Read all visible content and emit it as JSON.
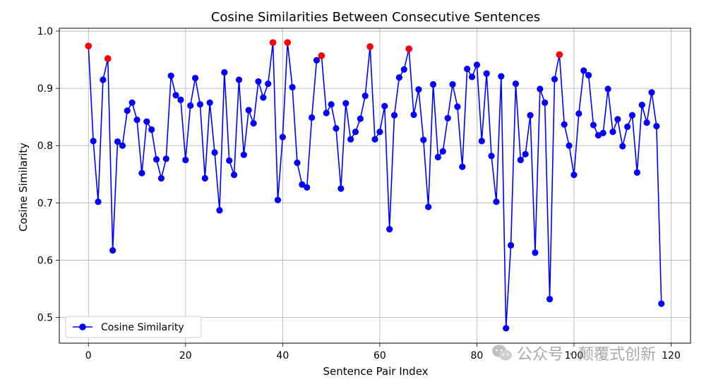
{
  "chart_data": {
    "type": "line",
    "title": "Cosine Similarities Between Consecutive Sentences",
    "xlabel": "Sentence Pair Index",
    "ylabel": "Cosine Similarity",
    "xlim": [
      -6,
      124
    ],
    "ylim": [
      0.455,
      1.005
    ],
    "xticks": [
      0,
      20,
      40,
      60,
      80,
      100,
      120
    ],
    "yticks": [
      0.5,
      0.6,
      0.7,
      0.8,
      0.9,
      1.0
    ],
    "grid": true,
    "legend_position": "lower-left",
    "series": [
      {
        "name": "Cosine Similarity",
        "color": "#0000ff",
        "marker": "circle",
        "x": [
          0,
          1,
          2,
          3,
          4,
          5,
          6,
          7,
          8,
          9,
          10,
          11,
          12,
          13,
          14,
          15,
          16,
          17,
          18,
          19,
          20,
          21,
          22,
          23,
          24,
          25,
          26,
          27,
          28,
          29,
          30,
          31,
          32,
          33,
          34,
          35,
          36,
          37,
          38,
          39,
          40,
          41,
          42,
          43,
          44,
          45,
          46,
          47,
          48,
          49,
          50,
          51,
          52,
          53,
          54,
          55,
          56,
          57,
          58,
          59,
          60,
          61,
          62,
          63,
          64,
          65,
          66,
          67,
          68,
          69,
          70,
          71,
          72,
          73,
          74,
          75,
          76,
          77,
          78,
          79,
          80,
          81,
          82,
          83,
          84,
          85,
          86,
          87,
          88,
          89,
          90,
          91,
          92,
          93,
          94,
          95,
          96,
          97,
          98,
          99,
          100,
          101,
          102,
          103,
          104,
          105,
          106,
          107,
          108,
          109,
          110,
          111,
          112,
          113,
          114,
          115,
          116,
          117,
          118
        ],
        "y": [
          0.974,
          0.808,
          0.702,
          0.915,
          0.952,
          0.617,
          0.807,
          0.8,
          0.861,
          0.875,
          0.845,
          0.752,
          0.842,
          0.828,
          0.776,
          0.743,
          0.777,
          0.922,
          0.888,
          0.88,
          0.775,
          0.87,
          0.918,
          0.872,
          0.743,
          0.875,
          0.788,
          0.687,
          0.928,
          0.774,
          0.749,
          0.915,
          0.784,
          0.862,
          0.839,
          0.912,
          0.884,
          0.908,
          0.98,
          0.705,
          0.815,
          0.98,
          0.902,
          0.77,
          0.732,
          0.727,
          0.849,
          0.949,
          0.957,
          0.857,
          0.872,
          0.83,
          0.725,
          0.874,
          0.811,
          0.824,
          0.847,
          0.887,
          0.973,
          0.811,
          0.824,
          0.869,
          0.654,
          0.853,
          0.919,
          0.933,
          0.969,
          0.854,
          0.898,
          0.81,
          0.693,
          0.907,
          0.78,
          0.79,
          0.848,
          0.907,
          0.868,
          0.763,
          0.934,
          0.92,
          0.941,
          0.808,
          0.926,
          0.782,
          0.702,
          0.921,
          0.481,
          0.626,
          0.908,
          0.775,
          0.785,
          0.853,
          0.613,
          0.899,
          0.875,
          0.532,
          0.916,
          0.959,
          0.837,
          0.8,
          0.749,
          0.856,
          0.931,
          0.923,
          0.836,
          0.818,
          0.822,
          0.899,
          0.824,
          0.846,
          0.799,
          0.833,
          0.853,
          0.753,
          0.871,
          0.84,
          0.893,
          0.834,
          0.524
        ]
      }
    ],
    "highlight_points": {
      "color": "#ff0000",
      "x": [
        0,
        4,
        38,
        41,
        48,
        58,
        66,
        97
      ],
      "y": [
        0.974,
        0.952,
        0.98,
        0.98,
        0.957,
        0.973,
        0.969,
        0.959
      ]
    }
  },
  "watermark": {
    "text": "公众号 · 颠覆式创新",
    "icon": "wechat-icon"
  }
}
